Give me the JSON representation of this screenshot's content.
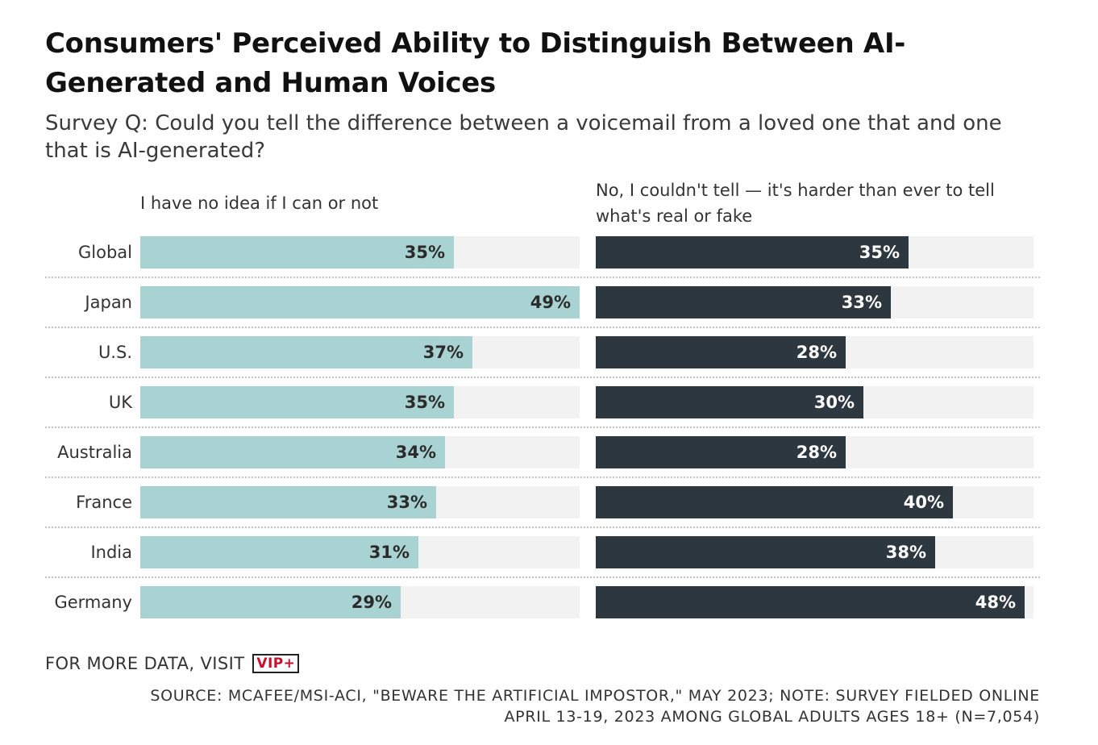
{
  "title": "Consumers' Perceived Ability to Distinguish Between AI-Generated and Human Voices",
  "subtitle": "Survey Q: Could you tell the difference between a voicemail from a loved one that and one that is AI-generated?",
  "footer": {
    "more_text": "FOR MORE DATA, VISIT",
    "logo_text": "VIP+",
    "source_line1": "SOURCE: MCAFEE/MSI-ACI, \"BEWARE THE ARTIFICIAL IMPOSTOR,\" MAY 2023; NOTE: SURVEY FIELDED ONLINE",
    "source_line2": "APRIL 13-19, 2023 AMONG GLOBAL ADULTS AGES 18+ (N=7,054)"
  },
  "colors": {
    "series_light": "#a9d3d2",
    "series_dark": "#2c3740",
    "track": "#f2f2f2",
    "logo_red": "#c8102e"
  },
  "chart_data": {
    "type": "bar",
    "orientation": "horizontal",
    "title": "Consumers' Perceived Ability to Distinguish Between AI-Generated and Human Voices",
    "subtitle": "Survey Q: Could you tell the difference between a voicemail from a loved one that and one that is AI-generated?",
    "categories": [
      "Global",
      "Japan",
      "U.S.",
      "UK",
      "Australia",
      "France",
      "India",
      "Germany"
    ],
    "series": [
      {
        "name": "I have no idea if I can or not",
        "values": [
          35,
          49,
          37,
          35,
          34,
          33,
          31,
          29
        ],
        "labels": [
          "35%",
          "49%",
          "37%",
          "35%",
          "34%",
          "33%",
          "31%",
          "29%"
        ],
        "color": "#a9d3d2"
      },
      {
        "name": "No, I couldn't tell — it's harder than ever to tell what's real or fake",
        "values": [
          35,
          33,
          28,
          30,
          28,
          40,
          38,
          48
        ],
        "labels": [
          "35%",
          "33%",
          "28%",
          "30%",
          "28%",
          "40%",
          "38%",
          "48%"
        ],
        "color": "#2c3740"
      }
    ],
    "xlim": [
      0,
      49
    ],
    "unit": "%",
    "grid": false,
    "legend": "column headers above each panel"
  }
}
